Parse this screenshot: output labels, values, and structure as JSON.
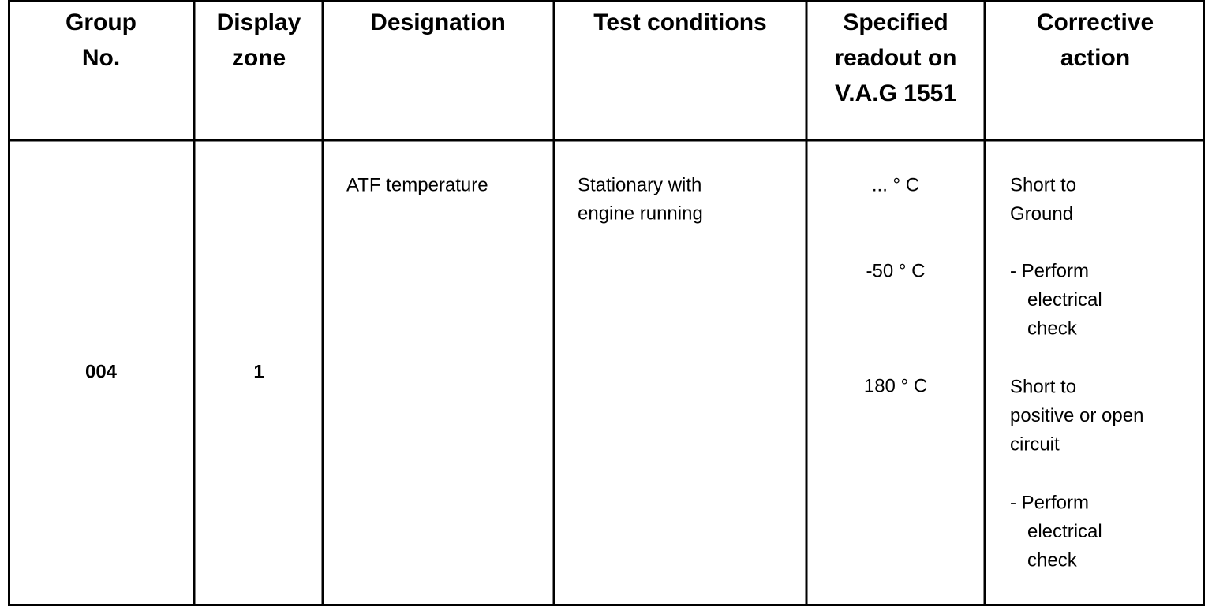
{
  "table": {
    "header": [
      [
        "Group",
        "No."
      ],
      [
        "Display",
        "zone"
      ],
      [
        "Designation"
      ],
      [
        "Test conditions"
      ],
      [
        "Specified",
        "readout on",
        "V.A.G 1551"
      ],
      [
        "Corrective",
        "action"
      ]
    ],
    "rows": [
      {
        "group": "004",
        "zone": "1",
        "designation": "ATF temperature",
        "test_conditions": [
          "Stationary with",
          "engine running"
        ],
        "readouts": [
          "... ° C",
          "-50 ° C",
          "180 ° C"
        ],
        "corrective_action": [
          [
            "Short to",
            "Ground"
          ],
          [
            "- Perform",
            "electrical",
            "check"
          ],
          [
            "Short to",
            "positive or open",
            "circuit"
          ],
          [
            "- Perform",
            "electrical",
            "check"
          ]
        ]
      }
    ]
  }
}
